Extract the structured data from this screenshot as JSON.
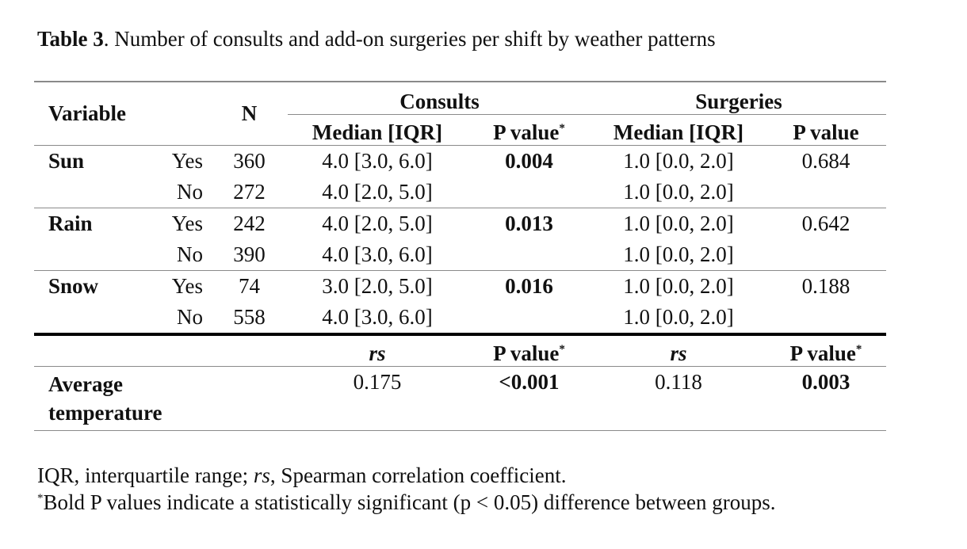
{
  "caption": {
    "label": "Table 3",
    "text": ". Number of consults and add-on surgeries per shift by weather patterns"
  },
  "header": {
    "variable": "Variable",
    "n": "N",
    "consults": "Consults",
    "surgeries": "Surgeries",
    "median_iqr": "Median [IQR]",
    "p_value": "P value",
    "asterisk": "*"
  },
  "rows": [
    {
      "variable": "Sun",
      "group": "Yes",
      "n": "360",
      "c_median": "4.0 [3.0, 6.0]",
      "c_p": "0.004",
      "s_median": "1.0 [0.0, 2.0]",
      "s_p": "0.684"
    },
    {
      "variable": "",
      "group": "No",
      "n": "272",
      "c_median": "4.0 [2.0, 5.0]",
      "c_p": "",
      "s_median": "1.0 [0.0, 2.0]",
      "s_p": ""
    },
    {
      "variable": "Rain",
      "group": "Yes",
      "n": "242",
      "c_median": "4.0 [2.0, 5.0]",
      "c_p": "0.013",
      "s_median": "1.0 [0.0, 2.0]",
      "s_p": "0.642"
    },
    {
      "variable": "",
      "group": "No",
      "n": "390",
      "c_median": "4.0 [3.0, 6.0]",
      "c_p": "",
      "s_median": "1.0 [0.0, 2.0]",
      "s_p": ""
    },
    {
      "variable": "Snow",
      "group": "Yes",
      "n": "74",
      "c_median": "3.0 [2.0, 5.0]",
      "c_p": "0.016",
      "s_median": "1.0 [0.0, 2.0]",
      "s_p": "0.188"
    },
    {
      "variable": "",
      "group": "No",
      "n": "558",
      "c_median": "4.0 [3.0, 6.0]",
      "c_p": "",
      "s_median": "1.0 [0.0, 2.0]",
      "s_p": ""
    }
  ],
  "correlation_header": {
    "rs": "rs",
    "p_value": "P value",
    "asterisk": "*"
  },
  "temperature": {
    "label_line1": "Average",
    "label_line2": "temperature",
    "c_rs": "0.175",
    "c_p": "<0.001",
    "s_rs": "0.118",
    "s_p": "0.003"
  },
  "footnotes": {
    "abbr_1": "IQR, interquartile range; ",
    "abbr_rs": "rs",
    "abbr_2": ", Spearman correlation coefficient.",
    "asterisk": "*",
    "significance": "Bold P values indicate a statistically significant (p < 0.05) difference between groups."
  }
}
